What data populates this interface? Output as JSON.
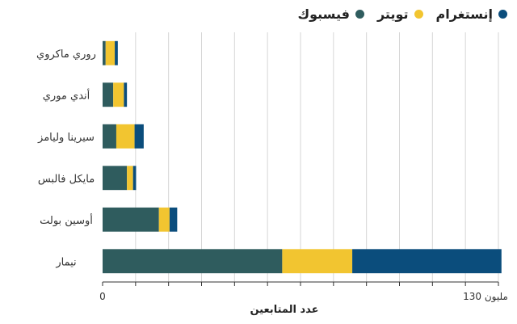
{
  "chart_data": {
    "type": "bar",
    "orientation": "horizontal",
    "stacked": true,
    "categories": [
      "روري ماكروي",
      "أندي موري",
      "سيرينا وليامز",
      "مايكل فالبس",
      "أوسين بولت",
      "نيمار"
    ],
    "series": [
      {
        "name": "فيسبوك",
        "color": "#2f5c5e",
        "values": [
          1,
          3.5,
          4.5,
          8,
          18.5,
          59
        ]
      },
      {
        "name": "تويتر",
        "color": "#f2c530",
        "values": [
          3,
          3.5,
          6,
          2,
          3.5,
          23
        ]
      },
      {
        "name": "إنستغرام",
        "color": "#0b4d7c",
        "values": [
          1,
          1,
          3,
          1,
          2.5,
          49
        ]
      }
    ],
    "xlim": [
      0,
      130
    ],
    "x_ticks": [
      0,
      130
    ],
    "tick_labels": {
      "start": "0",
      "end": "مليون 130"
    },
    "xlabel": "عدد المتابعين",
    "legend_position": "top-right",
    "grid": true
  }
}
